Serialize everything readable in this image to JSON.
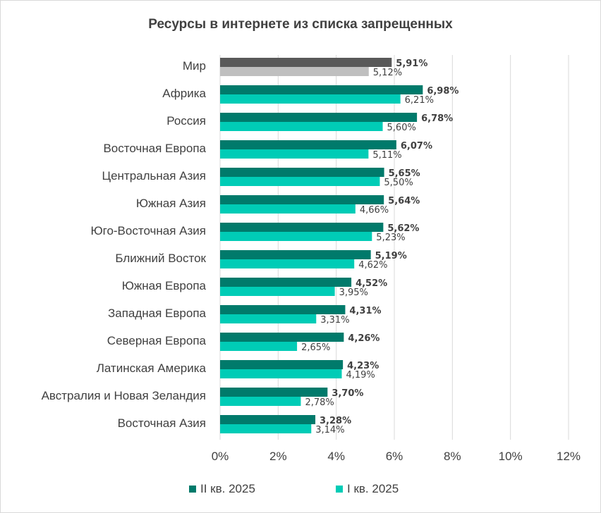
{
  "chart_data": {
    "type": "bar",
    "orientation": "horizontal",
    "title": "Ресурсы в интернете из списка запрещенных",
    "categories": [
      "Мир",
      "Африка",
      "Россия",
      "Восточная Европа",
      "Центральная Азия",
      "Южная Азия",
      "Юго-Восточная Азия",
      "Ближний Восток",
      "Южная Европа",
      "Западная Европа",
      "Северная Европа",
      "Латинская Америка",
      "Австралия и Новая Зеландия",
      "Восточная Азия"
    ],
    "series": [
      {
        "name": "II кв. 2025",
        "color": "#007a6b",
        "highlight_color": "#595959",
        "values": [
          5.91,
          6.98,
          6.78,
          6.07,
          5.65,
          5.64,
          5.62,
          5.19,
          4.52,
          4.31,
          4.26,
          4.23,
          3.7,
          3.28
        ],
        "labels": [
          "5,91%",
          "6,98%",
          "6,78%",
          "6,07%",
          "5,65%",
          "5,64%",
          "5,62%",
          "5,19%",
          "4,52%",
          "4,31%",
          "4,26%",
          "4,23%",
          "3,70%",
          "3,28%"
        ]
      },
      {
        "name": "I кв. 2025",
        "color": "#00ccb6",
        "highlight_color": "#bfbfbf",
        "values": [
          5.12,
          6.21,
          5.6,
          5.11,
          5.5,
          4.66,
          5.23,
          4.62,
          3.95,
          3.31,
          2.65,
          4.19,
          2.78,
          3.14
        ],
        "labels": [
          "5,12%",
          "6,21%",
          "5,60%",
          "5,11%",
          "5,50%",
          "4,66%",
          "5,23%",
          "4,62%",
          "3,95%",
          "3,31%",
          "2,65%",
          "4,19%",
          "2,78%",
          "3,14%"
        ]
      }
    ],
    "xlim": [
      0,
      12
    ],
    "x_ticks": [
      0,
      2,
      4,
      6,
      8,
      10,
      12
    ],
    "x_tick_labels": [
      "0%",
      "2%",
      "4%",
      "6%",
      "8%",
      "10%",
      "12%"
    ],
    "grid": "vertical",
    "legend_position": "bottom"
  }
}
